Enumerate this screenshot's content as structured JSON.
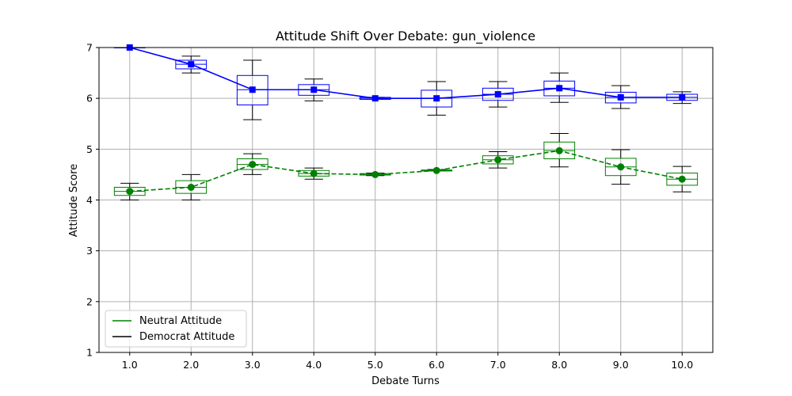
{
  "chart_data": {
    "type": "line",
    "title": "Attitude Shift Over Debate: gun_violence",
    "xlabel": "Debate Turns",
    "ylabel": "Attitude Score",
    "xlim": [
      0.5,
      10.5
    ],
    "ylim": [
      1,
      7
    ],
    "x_ticks": [
      1,
      2,
      3,
      4,
      5,
      6,
      7,
      8,
      9,
      10
    ],
    "x_tick_labels": [
      "1.0",
      "2.0",
      "3.0",
      "4.0",
      "5.0",
      "6.0",
      "7.0",
      "8.0",
      "9.0",
      "10.0"
    ],
    "y_ticks": [
      1,
      2,
      3,
      4,
      5,
      6,
      7
    ],
    "y_tick_labels": [
      "1",
      "2",
      "3",
      "4",
      "5",
      "6",
      "7"
    ],
    "grid": true,
    "legend_position": "lower-left",
    "legend": [
      {
        "label": "Neutral Attitude",
        "color": "#008000"
      },
      {
        "label": "Democrat Attitude",
        "color": "#000000"
      }
    ],
    "series": [
      {
        "name": "Democrat Attitude",
        "color": "#0000ff",
        "marker": "square",
        "line_style": "solid",
        "x": [
          1,
          2,
          3,
          4,
          5,
          6,
          7,
          8,
          9,
          10
        ],
        "mean": [
          7.0,
          6.67,
          6.17,
          6.17,
          6.0,
          6.0,
          6.08,
          6.2,
          6.02,
          6.02
        ],
        "box": [
          {
            "whisker_low": 7.0,
            "q1": 7.0,
            "median": 7.0,
            "q3": 7.0,
            "whisker_high": 7.0
          },
          {
            "whisker_low": 6.5,
            "q1": 6.58,
            "median": 6.67,
            "q3": 6.75,
            "whisker_high": 6.83
          },
          {
            "whisker_low": 5.58,
            "q1": 5.87,
            "median": 6.17,
            "q3": 6.45,
            "whisker_high": 6.75
          },
          {
            "whisker_low": 5.95,
            "q1": 6.06,
            "median": 6.17,
            "q3": 6.27,
            "whisker_high": 6.38
          },
          {
            "whisker_low": 5.98,
            "q1": 5.98,
            "median": 6.0,
            "q3": 6.02,
            "whisker_high": 6.02
          },
          {
            "whisker_low": 5.67,
            "q1": 5.83,
            "median": 6.0,
            "q3": 6.16,
            "whisker_high": 6.33
          },
          {
            "whisker_low": 5.83,
            "q1": 5.96,
            "median": 6.08,
            "q3": 6.2,
            "whisker_high": 6.33
          },
          {
            "whisker_low": 5.92,
            "q1": 6.05,
            "median": 6.2,
            "q3": 6.34,
            "whisker_high": 6.5
          },
          {
            "whisker_low": 5.8,
            "q1": 5.91,
            "median": 6.02,
            "q3": 6.12,
            "whisker_high": 6.25
          },
          {
            "whisker_low": 5.9,
            "q1": 5.96,
            "median": 6.02,
            "q3": 6.08,
            "whisker_high": 6.13
          }
        ]
      },
      {
        "name": "Neutral Attitude",
        "color": "#008000",
        "marker": "circle",
        "line_style": "dashed",
        "x": [
          1,
          2,
          3,
          4,
          5,
          6,
          7,
          8,
          9,
          10
        ],
        "mean": [
          4.17,
          4.25,
          4.7,
          4.52,
          4.5,
          4.58,
          4.79,
          4.97,
          4.65,
          4.41
        ],
        "box": [
          {
            "whisker_low": 4.0,
            "q1": 4.09,
            "median": 4.17,
            "q3": 4.25,
            "whisker_high": 4.33
          },
          {
            "whisker_low": 4.0,
            "q1": 4.13,
            "median": 4.25,
            "q3": 4.38,
            "whisker_high": 4.5
          },
          {
            "whisker_low": 4.5,
            "q1": 4.6,
            "median": 4.7,
            "q3": 4.81,
            "whisker_high": 4.91
          },
          {
            "whisker_low": 4.41,
            "q1": 4.47,
            "median": 4.52,
            "q3": 4.58,
            "whisker_high": 4.63
          },
          {
            "whisker_low": 4.48,
            "q1": 4.49,
            "median": 4.5,
            "q3": 4.52,
            "whisker_high": 4.53
          },
          {
            "whisker_low": 4.57,
            "q1": 4.57,
            "median": 4.58,
            "q3": 4.59,
            "whisker_high": 4.6
          },
          {
            "whisker_low": 4.63,
            "q1": 4.71,
            "median": 4.79,
            "q3": 4.87,
            "whisker_high": 4.95
          },
          {
            "whisker_low": 4.65,
            "q1": 4.81,
            "median": 4.97,
            "q3": 5.14,
            "whisker_high": 5.31
          },
          {
            "whisker_low": 4.31,
            "q1": 4.48,
            "median": 4.65,
            "q3": 4.82,
            "whisker_high": 4.99
          },
          {
            "whisker_low": 4.16,
            "q1": 4.29,
            "median": 4.41,
            "q3": 4.53,
            "whisker_high": 4.66
          }
        ]
      }
    ]
  }
}
